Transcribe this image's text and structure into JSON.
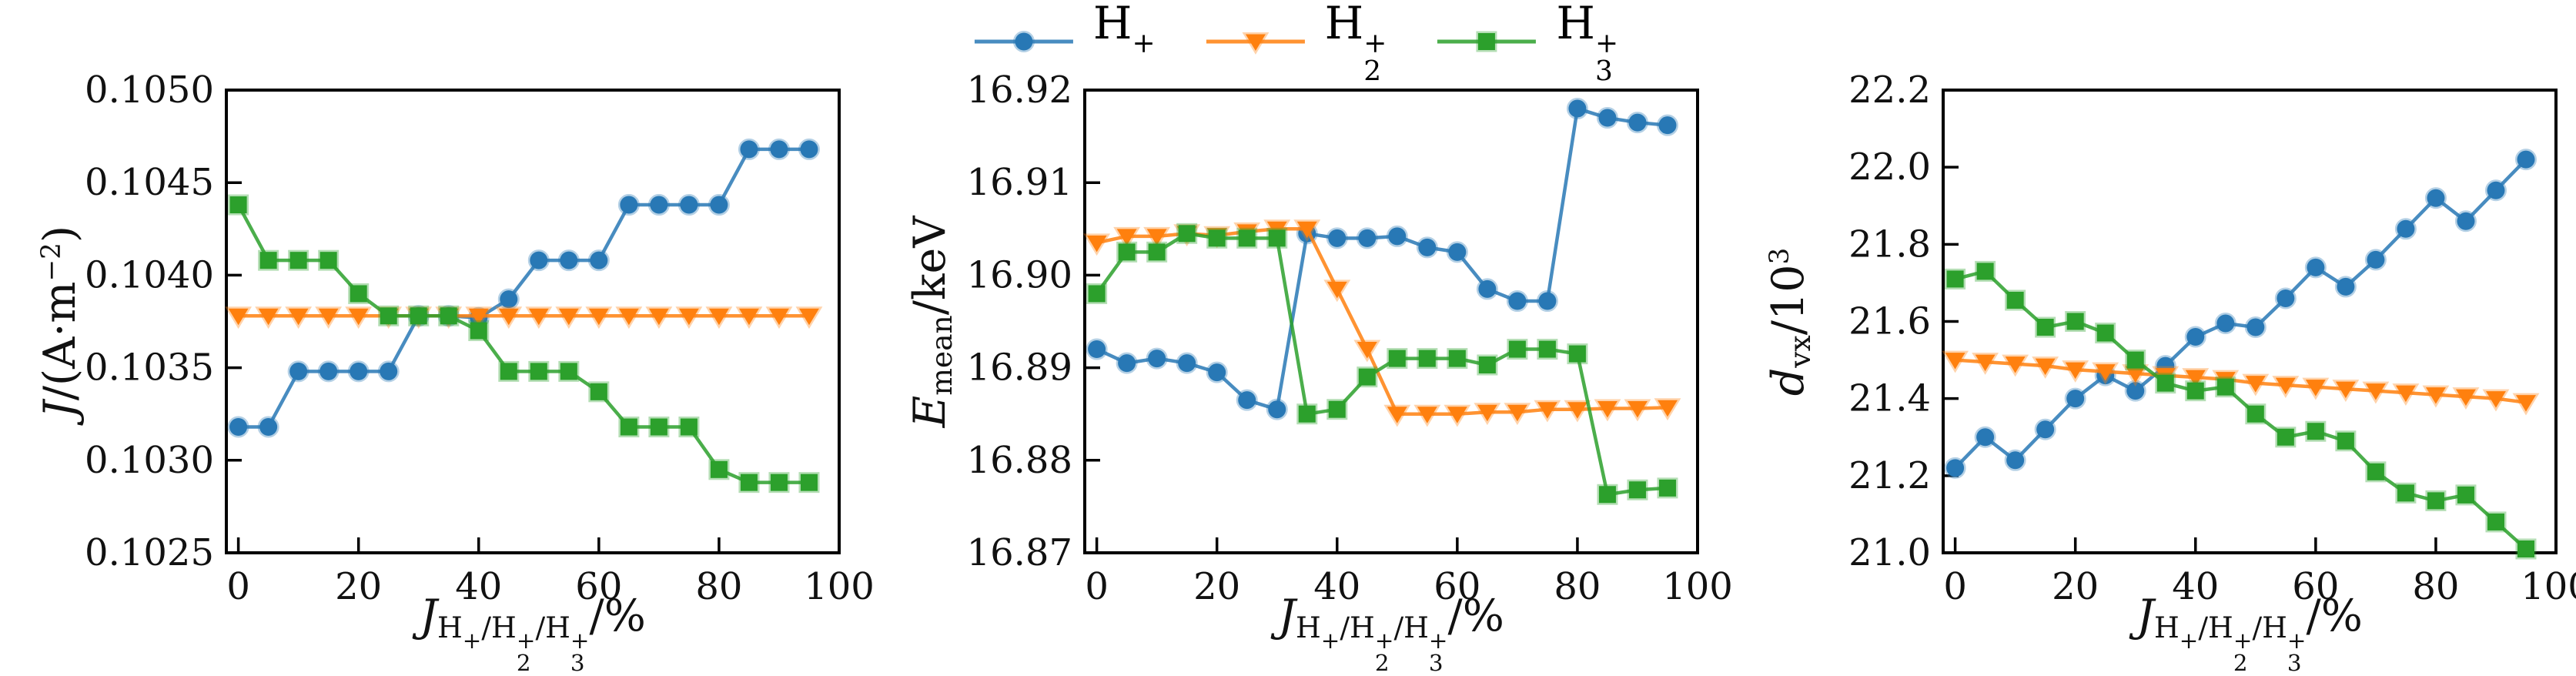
{
  "figure": {
    "background": "#ffffff",
    "axis_color": "#000000",
    "tick_label_color": "#111111"
  },
  "legend": {
    "position": "top-center",
    "entries": [
      {
        "name": "H+",
        "label_rich": [
          {
            "t": "H"
          },
          {
            "stack": {
              "sup": "+",
              "sub": ""
            }
          }
        ]
      },
      {
        "name": "H2+",
        "label_rich": [
          {
            "t": "H"
          },
          {
            "stack": {
              "sup": "+",
              "sub": "2"
            }
          }
        ]
      },
      {
        "name": "H3+",
        "label_rich": [
          {
            "t": "H"
          },
          {
            "stack": {
              "sup": "+",
              "sub": "3"
            }
          }
        ]
      }
    ]
  },
  "shared_x": {
    "label_plain": "J_{H+/H2+/H3+}/%",
    "label_rich": [
      {
        "t": "J",
        "style": "it"
      },
      {
        "style": "sub",
        "parts": [
          {
            "t": "H"
          },
          {
            "stack": {
              "sup": "+",
              "sub": ""
            }
          },
          {
            "t": "/H"
          },
          {
            "stack": {
              "sup": "+",
              "sub": "2"
            }
          },
          {
            "t": "/H"
          },
          {
            "stack": {
              "sup": "+",
              "sub": "3"
            }
          }
        ]
      },
      {
        "t": "/%"
      }
    ],
    "x_values": [
      0,
      5,
      10,
      15,
      20,
      25,
      30,
      35,
      40,
      45,
      50,
      55,
      60,
      65,
      70,
      75,
      80,
      85,
      90,
      95
    ]
  },
  "series_style": [
    {
      "name": "H+",
      "color": "#2878b5",
      "marker": "circle"
    },
    {
      "name": "H2+",
      "color": "#ff800e",
      "marker": "triangle-down"
    },
    {
      "name": "H3+",
      "color": "#2ca02c",
      "marker": "square"
    }
  ],
  "chart_data": [
    {
      "type": "line",
      "title": "",
      "ylabel_plain": "J/(A·m−2)",
      "ylabel_rich": [
        {
          "t": "J",
          "style": "it"
        },
        {
          "t": "/(A·m"
        },
        {
          "t": "−2",
          "style": "sup"
        },
        {
          "t": ")"
        }
      ],
      "xlim": [
        -2,
        100
      ],
      "ylim": [
        0.1025,
        0.105
      ],
      "xticks": {
        "values": [
          0,
          20,
          40,
          60,
          80,
          100
        ],
        "labels": [
          "0",
          "20",
          "40",
          "60",
          "80",
          "100"
        ]
      },
      "yticks": {
        "values": [
          0.1025,
          0.103,
          0.1035,
          0.104,
          0.1045,
          0.105
        ],
        "labels": [
          "0.1025",
          "0.1030",
          "0.1035",
          "0.1040",
          "0.1045",
          "0.1050"
        ]
      },
      "series": [
        {
          "name": "H+",
          "values": [
            0.10318,
            0.10318,
            0.10348,
            0.10348,
            0.10348,
            0.10348,
            0.10378,
            0.10378,
            0.10377,
            0.10387,
            0.10408,
            0.10408,
            0.10408,
            0.10438,
            0.10438,
            0.10438,
            0.10438,
            0.10468,
            0.10468,
            0.10468
          ]
        },
        {
          "name": "H2+",
          "values": [
            0.10378,
            0.10378,
            0.10378,
            0.10378,
            0.10378,
            0.10378,
            0.10378,
            0.10378,
            0.10378,
            0.10378,
            0.10378,
            0.10378,
            0.10378,
            0.10378,
            0.10378,
            0.10378,
            0.10378,
            0.10378,
            0.10378,
            0.10378
          ]
        },
        {
          "name": "H3+",
          "values": [
            0.10438,
            0.10408,
            0.10408,
            0.10408,
            0.1039,
            0.10378,
            0.10378,
            0.10378,
            0.1037,
            0.10348,
            0.10348,
            0.10348,
            0.10337,
            0.10318,
            0.10318,
            0.10318,
            0.10295,
            0.10288,
            0.10288,
            0.10288
          ]
        }
      ]
    },
    {
      "type": "line",
      "title": "",
      "ylabel_plain": "E_mean/keV",
      "ylabel_rich": [
        {
          "t": "E",
          "style": "it"
        },
        {
          "t": "mean",
          "style": "sub"
        },
        {
          "t": "/keV"
        }
      ],
      "xlim": [
        -2,
        100
      ],
      "ylim": [
        16.87,
        16.92
      ],
      "xticks": {
        "values": [
          0,
          20,
          40,
          60,
          80,
          100
        ],
        "labels": [
          "0",
          "20",
          "40",
          "60",
          "80",
          "100"
        ]
      },
      "yticks": {
        "values": [
          16.87,
          16.88,
          16.89,
          16.9,
          16.91,
          16.92
        ],
        "labels": [
          "16.87",
          "16.88",
          "16.89",
          "16.90",
          "16.91",
          "16.92"
        ]
      },
      "series": [
        {
          "name": "H+",
          "values": [
            16.892,
            16.8905,
            16.891,
            16.8905,
            16.8895,
            16.8865,
            16.8855,
            16.9045,
            16.904,
            16.904,
            16.9042,
            16.903,
            16.9025,
            16.8985,
            16.8972,
            16.8972,
            16.918,
            16.917,
            16.9165,
            16.9162
          ]
        },
        {
          "name": "H2+",
          "values": [
            16.9035,
            16.9042,
            16.9042,
            16.9045,
            16.9043,
            16.9047,
            16.905,
            16.905,
            16.8985,
            16.892,
            16.885,
            16.885,
            16.885,
            16.8852,
            16.8852,
            16.8855,
            16.8855,
            16.8856,
            16.8856,
            16.8857
          ]
        },
        {
          "name": "H3+",
          "values": [
            16.898,
            16.9025,
            16.9025,
            16.9045,
            16.904,
            16.904,
            16.904,
            16.885,
            16.8855,
            16.889,
            16.891,
            16.891,
            16.891,
            16.8903,
            16.892,
            16.892,
            16.8915,
            16.8763,
            16.8768,
            16.877
          ]
        }
      ]
    },
    {
      "type": "line",
      "title": "",
      "ylabel_plain": "d_vx/10³",
      "ylabel_rich": [
        {
          "t": "d",
          "style": "it"
        },
        {
          "t": "vx",
          "style": "sub"
        },
        {
          "t": "/10"
        },
        {
          "t": "3",
          "style": "sup"
        }
      ],
      "xlim": [
        -2,
        100
      ],
      "ylim": [
        21.0,
        22.2
      ],
      "xticks": {
        "values": [
          0,
          20,
          40,
          60,
          80,
          100
        ],
        "labels": [
          "0",
          "20",
          "40",
          "60",
          "80",
          "100"
        ]
      },
      "yticks": {
        "values": [
          21.0,
          21.2,
          21.4,
          21.6,
          21.8,
          22.0,
          22.2
        ],
        "labels": [
          "21.0",
          "21.2",
          "21.4",
          "21.6",
          "21.8",
          "22.0",
          "22.2"
        ]
      },
      "series": [
        {
          "name": "H+",
          "values": [
            21.22,
            21.3,
            21.24,
            21.32,
            21.4,
            21.46,
            21.42,
            21.485,
            21.56,
            21.595,
            21.585,
            21.66,
            21.74,
            21.69,
            21.76,
            21.84,
            21.92,
            21.86,
            21.94,
            22.02
          ]
        },
        {
          "name": "H2+",
          "values": [
            21.5,
            21.495,
            21.49,
            21.485,
            21.475,
            21.47,
            21.465,
            21.46,
            21.455,
            21.45,
            21.44,
            21.435,
            21.43,
            21.425,
            21.42,
            21.415,
            21.41,
            21.405,
            21.4,
            21.39
          ]
        },
        {
          "name": "H3+",
          "values": [
            21.71,
            21.73,
            21.655,
            21.585,
            21.6,
            21.57,
            21.5,
            21.44,
            21.42,
            21.43,
            21.36,
            21.3,
            21.315,
            21.29,
            21.21,
            21.155,
            21.135,
            21.15,
            21.08,
            21.01
          ]
        }
      ]
    }
  ]
}
